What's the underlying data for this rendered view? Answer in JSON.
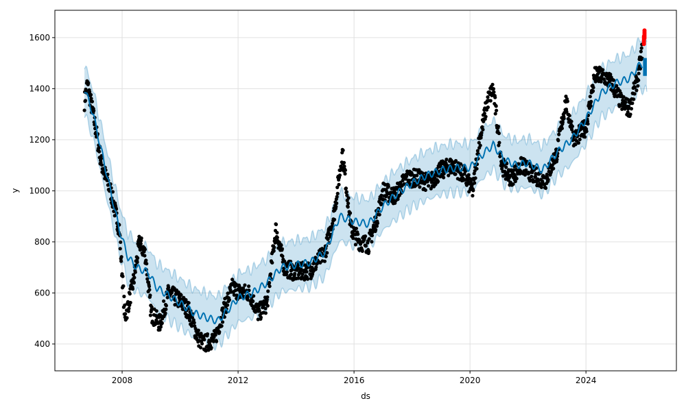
{
  "chart_data": {
    "type": "scatter",
    "title": "",
    "xlabel": "ds",
    "ylabel": "y",
    "xlim": [
      2005.68,
      2027.12
    ],
    "ylim": [
      295,
      1707
    ],
    "grid": true,
    "x_ticks": [
      2008,
      2012,
      2016,
      2020,
      2024
    ],
    "x_tick_labels": [
      "2008",
      "2012",
      "2016",
      "2020",
      "2024"
    ],
    "y_ticks": [
      400,
      600,
      800,
      1000,
      1200,
      1400,
      1600
    ],
    "y_tick_labels": [
      "400",
      "600",
      "800",
      "1000",
      "1200",
      "1400",
      "1600"
    ],
    "colors": {
      "observed": "#000000",
      "forecast": "#0072B2",
      "interval": "#a6cbe3",
      "recent": "#ff0000"
    },
    "forecast": {
      "x": [
        2006.7,
        2007.0,
        2007.3,
        2007.6,
        2007.9,
        2008.2,
        2008.5,
        2008.9,
        2009.2,
        2009.6,
        2010.0,
        2010.5,
        2011.0,
        2011.3,
        2011.7,
        2012.0,
        2012.5,
        2013.0,
        2013.5,
        2014.0,
        2014.5,
        2015.0,
        2015.5,
        2016.0,
        2016.5,
        2017.0,
        2017.5,
        2018.0,
        2018.5,
        2019.0,
        2019.5,
        2020.0,
        2020.5,
        2020.8,
        2021.2,
        2021.6,
        2022.0,
        2022.5,
        2023.0,
        2023.5,
        2024.0,
        2024.5,
        2025.0,
        2025.5,
        2025.9,
        2026.1
      ],
      "yhat": [
        1400,
        1300,
        1150,
        1000,
        850,
        740,
        700,
        680,
        620,
        590,
        560,
        520,
        500,
        490,
        540,
        580,
        600,
        640,
        700,
        710,
        720,
        760,
        900,
        880,
        870,
        940,
        990,
        1030,
        1060,
        1080,
        1090,
        1090,
        1150,
        1180,
        1120,
        1100,
        1110,
        1080,
        1150,
        1200,
        1280,
        1380,
        1420,
        1440,
        1500,
        1480
      ],
      "interval_halfwidth": 95
    },
    "observed": {
      "x": [
        2006.7,
        2006.8,
        2007.0,
        2007.3,
        2007.6,
        2007.9,
        2008.1,
        2008.4,
        2008.6,
        2008.8,
        2009.0,
        2009.3,
        2009.6,
        2010.0,
        2010.3,
        2010.6,
        2010.8,
        2011.2,
        2011.5,
        2011.8,
        2012.1,
        2012.4,
        2012.7,
        2013.0,
        2013.3,
        2013.6,
        2014.0,
        2014.5,
        2015.0,
        2015.3,
        2015.6,
        2015.9,
        2016.2,
        2016.5,
        2016.8,
        2017.0,
        2017.4,
        2017.8,
        2018.2,
        2018.6,
        2019.0,
        2019.4,
        2019.8,
        2020.1,
        2020.3,
        2020.6,
        2020.8,
        2021.1,
        2021.4,
        2021.8,
        2022.2,
        2022.6,
        2023.0,
        2023.3,
        2023.6,
        2024.0,
        2024.3,
        2024.6,
        2024.9,
        2025.2,
        2025.5,
        2025.8,
        2025.95
      ],
      "y": [
        1350,
        1420,
        1300,
        1100,
        1000,
        850,
        500,
        650,
        800,
        750,
        520,
        480,
        600,
        570,
        530,
        430,
        400,
        420,
        530,
        620,
        600,
        600,
        520,
        560,
        850,
        700,
        680,
        690,
        760,
        900,
        1150,
        850,
        800,
        790,
        900,
        1000,
        980,
        1050,
        1050,
        1030,
        1080,
        1100,
        1060,
        1000,
        1180,
        1350,
        1400,
        1100,
        1050,
        1100,
        1060,
        1040,
        1150,
        1350,
        1200,
        1250,
        1450,
        1450,
        1420,
        1350,
        1320,
        1450,
        1560
      ]
    },
    "recent": {
      "x": [
        2026.0,
        2026.02
      ],
      "y": [
        1605,
        1628
      ]
    },
    "forecast_future": {
      "x": [
        2025.97,
        2026.1
      ],
      "y": [
        1450,
        1520
      ]
    }
  }
}
